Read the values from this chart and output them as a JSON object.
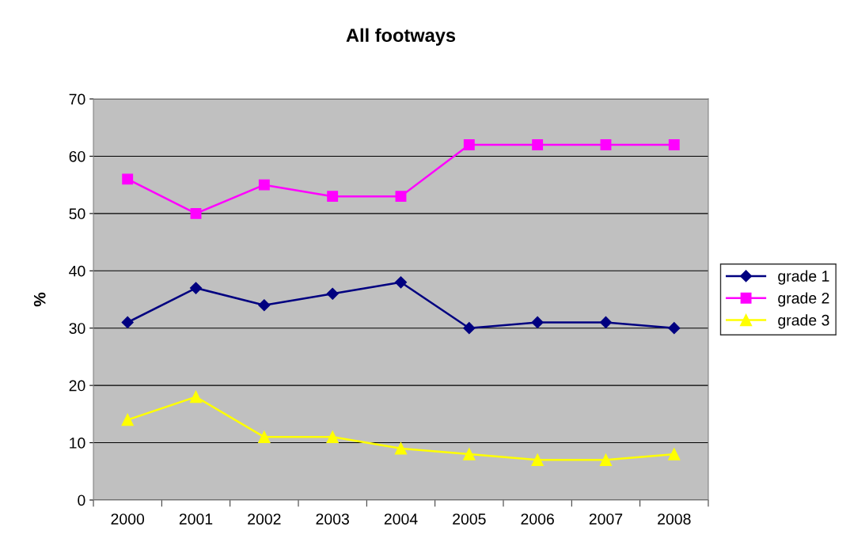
{
  "chart_data": {
    "type": "line",
    "title": "All footways",
    "ylabel": "%",
    "categories": [
      "2000",
      "2001",
      "2002",
      "2003",
      "2004",
      "2005",
      "2006",
      "2007",
      "2008"
    ],
    "series": [
      {
        "name": "grade 1",
        "color": "#000080",
        "marker": "diamond",
        "values": [
          31,
          37,
          34,
          36,
          38,
          30,
          31,
          31,
          30
        ]
      },
      {
        "name": "grade 2",
        "color": "#ff00ff",
        "marker": "square",
        "values": [
          56,
          50,
          55,
          53,
          53,
          62,
          62,
          62,
          62
        ]
      },
      {
        "name": "grade 3",
        "color": "#ffff00",
        "marker": "triangle",
        "values": [
          14,
          18,
          11,
          11,
          9,
          8,
          7,
          7,
          8
        ]
      }
    ],
    "ylim": [
      0,
      70
    ],
    "yticks": [
      0,
      10,
      20,
      30,
      40,
      50,
      60,
      70
    ],
    "grid": "y",
    "legend": "right",
    "line_style": "solid"
  }
}
